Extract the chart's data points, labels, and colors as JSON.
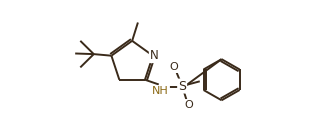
{
  "bg_color": "#ffffff",
  "bond_color": "#3a2a1a",
  "atom_color": "#3a2a1a",
  "nh_color": "#8b6914",
  "line_width": 1.4,
  "font_size": 8.5,
  "fig_width": 3.22,
  "fig_height": 1.31,
  "dpi": 100,
  "xlim": [
    0,
    10
  ],
  "ylim": [
    0,
    4.1
  ]
}
